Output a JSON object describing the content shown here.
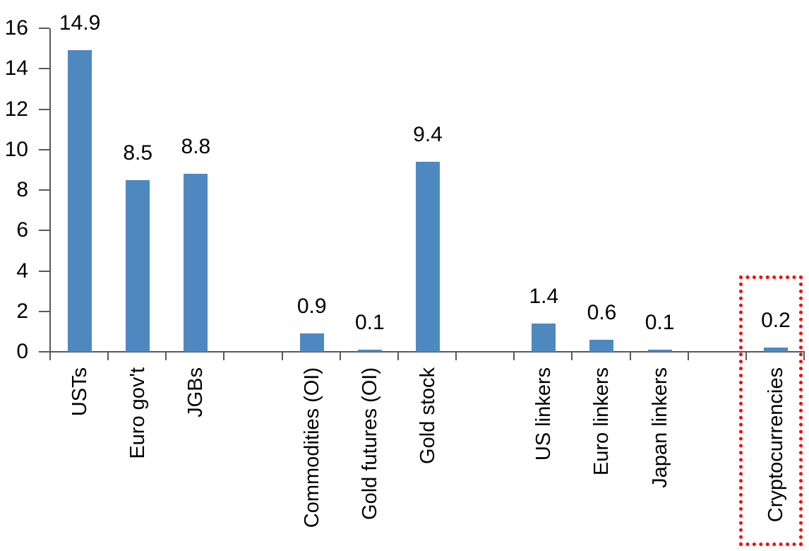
{
  "chart_data": {
    "type": "bar",
    "title": "",
    "xlabel": "",
    "ylabel": "",
    "ylim": [
      0,
      16
    ],
    "ytick_step": 2,
    "yticks": [
      "0",
      "2",
      "4",
      "6",
      "8",
      "10",
      "12",
      "14",
      "16"
    ],
    "grid": false,
    "legend": "none",
    "bar_color": "#4D89BE",
    "axis_color": "#595959",
    "text_color": "#000000",
    "categories": [
      "USTs",
      "Euro gov't",
      "JGBs",
      "Commodities (OI)",
      "Gold futures (OI)",
      "Gold stock",
      "US linkers",
      "Euro linkers",
      "Japan linkers",
      "Cryptocurrencies"
    ],
    "values": [
      14.9,
      8.5,
      8.8,
      0.9,
      0.1,
      9.4,
      1.4,
      0.6,
      0.1,
      0.2
    ],
    "slots": [
      {
        "category": "USTs",
        "value": 14.9,
        "value_label": "14.9",
        "highlighted": false
      },
      {
        "category": "Euro gov't",
        "value": 8.5,
        "value_label": "8.5",
        "highlighted": false
      },
      {
        "category": "JGBs",
        "value": 8.8,
        "value_label": "8.8",
        "highlighted": false
      },
      {
        "category": "",
        "value": null,
        "value_label": "",
        "highlighted": false
      },
      {
        "category": "Commodities (OI)",
        "value": 0.9,
        "value_label": "0.9",
        "highlighted": false
      },
      {
        "category": "Gold futures (OI)",
        "value": 0.1,
        "value_label": "0.1",
        "highlighted": false
      },
      {
        "category": "Gold stock",
        "value": 9.4,
        "value_label": "9.4",
        "highlighted": false
      },
      {
        "category": "",
        "value": null,
        "value_label": "",
        "highlighted": false
      },
      {
        "category": "US linkers",
        "value": 1.4,
        "value_label": "1.4",
        "highlighted": false
      },
      {
        "category": "Euro linkers",
        "value": 0.6,
        "value_label": "0.6",
        "highlighted": false
      },
      {
        "category": "Japan linkers",
        "value": 0.1,
        "value_label": "0.1",
        "highlighted": false
      },
      {
        "category": "",
        "value": null,
        "value_label": "",
        "highlighted": false
      },
      {
        "category": "Cryptocurrencies",
        "value": 0.2,
        "value_label": "0.2",
        "highlighted": true
      }
    ],
    "annotation": {
      "shape": "dotted-box",
      "color": "#FF0000",
      "highlighted_category": "Cryptocurrencies"
    }
  }
}
